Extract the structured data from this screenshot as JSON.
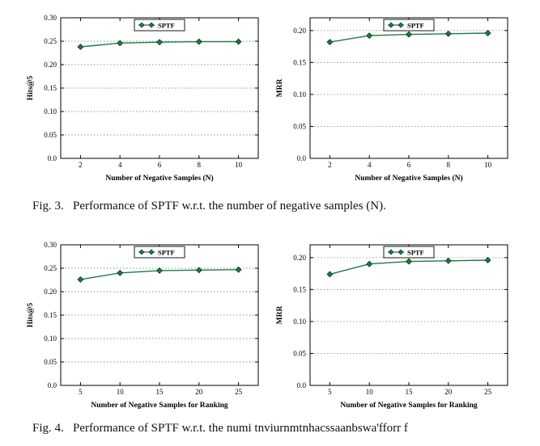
{
  "page": {
    "background": "#ffffff"
  },
  "captions": {
    "fig3": "Fig. 3.   Performance of SPTF w.r.t. the number of negative samples (N).",
    "fig4": "Fig. 4.   Performance of SPTF w.r.t. the numi tnviurnmtnhacssaanbswa'fforr f"
  },
  "chart_data": [
    {
      "type": "line",
      "series": [
        {
          "name": "SPTF",
          "x": [
            2,
            4,
            6,
            8,
            10
          ],
          "y": [
            0.238,
            0.246,
            0.248,
            0.249,
            0.249
          ]
        }
      ],
      "xlabel": "Number of Negative Samples (N)",
      "ylabel": "Hits@5",
      "xlim": [
        1,
        11
      ],
      "ylim": [
        0,
        0.3
      ],
      "xticks": [
        2,
        4,
        6,
        8,
        10
      ],
      "xticklabels": [
        "2",
        "4",
        "6",
        "8",
        "10"
      ],
      "yticks": [
        0,
        0.05,
        0.1,
        0.15,
        0.2,
        0.25,
        0.3
      ],
      "yticklabels": [
        "0.0",
        "0.05",
        "0.10",
        "0.15",
        "0.20",
        "0.25",
        "0.30"
      ],
      "legend": {
        "labels": [
          "SPTF"
        ],
        "position": "upper center"
      },
      "grid": true,
      "line_color": "#1f7a44",
      "marker": "diamond",
      "marker_edge_color": "#06351c",
      "grid_color": "#8a9a8a"
    },
    {
      "type": "line",
      "series": [
        {
          "name": "SPTF",
          "x": [
            2,
            4,
            6,
            8,
            10
          ],
          "y": [
            0.182,
            0.192,
            0.194,
            0.195,
            0.196
          ]
        }
      ],
      "xlabel": "Number of Negative Samples (N)",
      "ylabel": "MRR",
      "xlim": [
        1,
        11
      ],
      "ylim": [
        0,
        0.22
      ],
      "xticks": [
        2,
        4,
        6,
        8,
        10
      ],
      "xticklabels": [
        "2",
        "4",
        "6",
        "8",
        "10"
      ],
      "yticks": [
        0,
        0.05,
        0.1,
        0.15,
        0.2
      ],
      "yticklabels": [
        "0.0",
        "0.05",
        "0.10",
        "0.15",
        "0.20"
      ],
      "legend": {
        "labels": [
          "SPTF"
        ],
        "position": "upper center"
      },
      "grid": true,
      "line_color": "#1f7a44",
      "marker": "diamond",
      "marker_edge_color": "#06351c",
      "grid_color": "#8a9a8a"
    },
    {
      "type": "line",
      "series": [
        {
          "name": "SPTF",
          "x": [
            5,
            10,
            15,
            20,
            25
          ],
          "y": [
            0.226,
            0.24,
            0.245,
            0.246,
            0.247
          ]
        }
      ],
      "xlabel": "Number of Negative Samples for Ranking",
      "ylabel": "Hits@5",
      "xlim": [
        2.5,
        27.5
      ],
      "ylim": [
        0,
        0.3
      ],
      "xticks": [
        5,
        10,
        15,
        20,
        25
      ],
      "xticklabels": [
        "5",
        "10",
        "15",
        "20",
        "25"
      ],
      "yticks": [
        0,
        0.05,
        0.1,
        0.15,
        0.2,
        0.25,
        0.3
      ],
      "yticklabels": [
        "0.0",
        "0.05",
        "0.10",
        "0.15",
        "0.20",
        "0.25",
        "0.30"
      ],
      "legend": {
        "labels": [
          "SPTF"
        ],
        "position": "upper center"
      },
      "grid": true,
      "line_color": "#1f7a44",
      "marker": "diamond",
      "marker_edge_color": "#06351c",
      "grid_color": "#8a9a8a"
    },
    {
      "type": "line",
      "series": [
        {
          "name": "SPTF",
          "x": [
            5,
            10,
            15,
            20,
            25
          ],
          "y": [
            0.174,
            0.19,
            0.194,
            0.195,
            0.196
          ]
        }
      ],
      "xlabel": "Number of Negative Samples for Ranking",
      "ylabel": "MRR",
      "xlim": [
        2.5,
        27.5
      ],
      "ylim": [
        0,
        0.22
      ],
      "xticks": [
        5,
        10,
        15,
        20,
        25
      ],
      "xticklabels": [
        "5",
        "10",
        "15",
        "20",
        "25"
      ],
      "yticks": [
        0,
        0.05,
        0.1,
        0.15,
        0.2
      ],
      "yticklabels": [
        "0.0",
        "0.05",
        "0.10",
        "0.15",
        "0.20"
      ],
      "legend": {
        "labels": [
          "SPTF"
        ],
        "position": "upper center"
      },
      "grid": true,
      "line_color": "#1f7a44",
      "marker": "diamond",
      "marker_edge_color": "#06351c",
      "grid_color": "#8a9a8a"
    }
  ]
}
